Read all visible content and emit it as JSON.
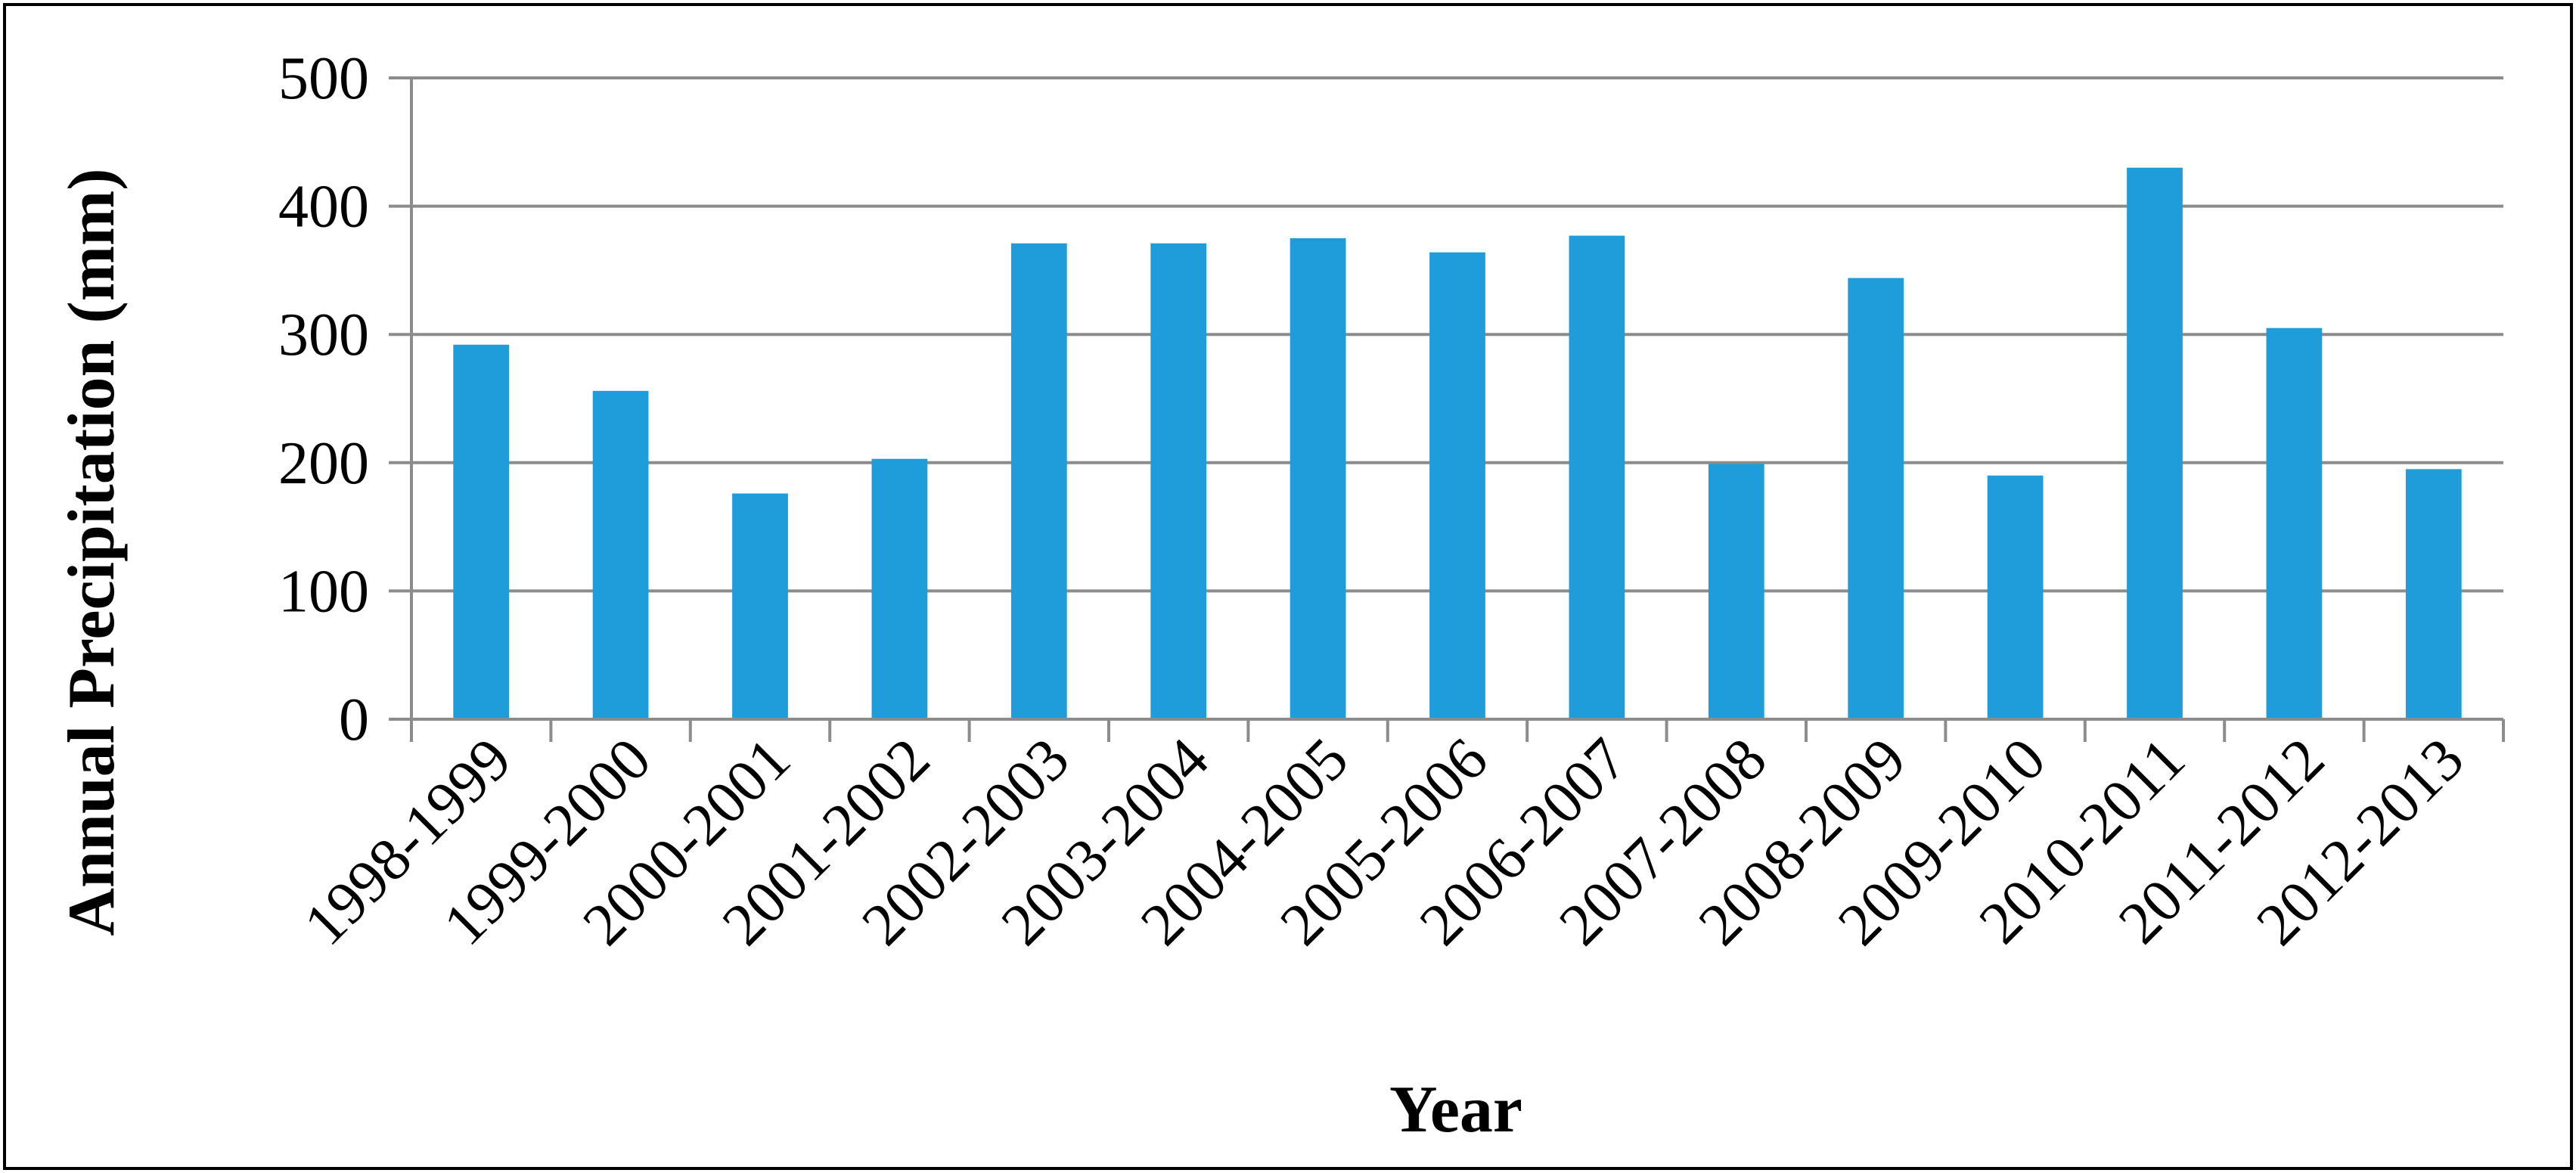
{
  "chart_data": {
    "type": "bar",
    "title": "",
    "xlabel": "Year",
    "ylabel": "Annual Precipitation (mm)",
    "ylim": [
      0,
      500
    ],
    "yticks": [
      0,
      100,
      200,
      300,
      400,
      500
    ],
    "grid": true,
    "legend": "none",
    "bar_color": "#1f9ddb",
    "categories": [
      "1998-1999",
      "1999-2000",
      "2000-2001",
      "2001-2002",
      "2002-2003",
      "2003-2004",
      "2004-2005",
      "2005-2006",
      "2006-2007",
      "2007-2008",
      "2008-2009",
      "2009-2010",
      "2010-2011",
      "2011-2012",
      "2012-2013"
    ],
    "values": [
      292,
      256,
      176,
      203,
      371,
      371,
      375,
      364,
      377,
      199,
      344,
      190,
      430,
      305,
      195
    ]
  }
}
